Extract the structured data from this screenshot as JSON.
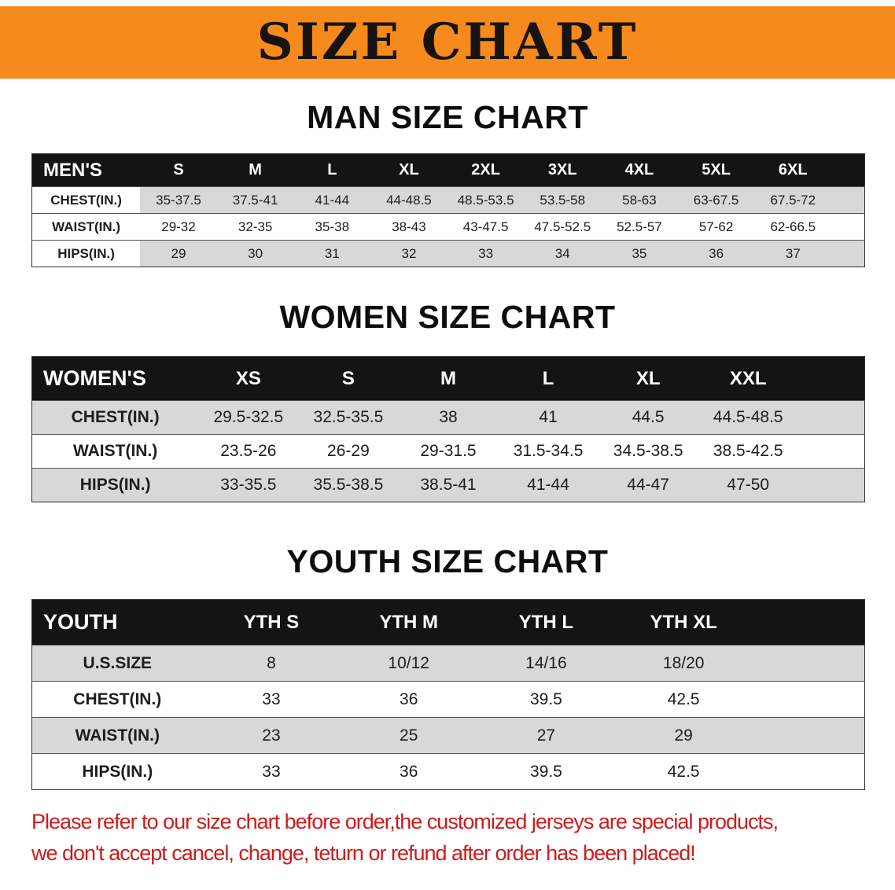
{
  "banner": {
    "title": "SIZE CHART"
  },
  "men": {
    "heading": "MAN SIZE CHART",
    "table": {
      "header": [
        "MEN'S",
        "S",
        "M",
        "L",
        "XL",
        "2XL",
        "3XL",
        "4XL",
        "5XL",
        "6XL"
      ],
      "rows": [
        [
          "CHEST(IN.)",
          "35-37.5",
          "37.5-41",
          "41-44",
          "44-48.5",
          "48.5-53.5",
          "53.5-58",
          "58-63",
          "63-67.5",
          "67.5-72"
        ],
        [
          "WAIST(IN.)",
          "29-32",
          "32-35",
          "35-38",
          "38-43",
          "43-47.5",
          "47.5-52.5",
          "52.5-57",
          "57-62",
          "62-66.5"
        ],
        [
          "HIPS(IN.)",
          "29",
          "30",
          "31",
          "32",
          "33",
          "34",
          "35",
          "36",
          "37"
        ]
      ]
    }
  },
  "women": {
    "heading": "WOMEN SIZE CHART",
    "table": {
      "header": [
        "WOMEN'S",
        "XS",
        "S",
        "M",
        "L",
        "XL",
        "XXL"
      ],
      "rows": [
        [
          "CHEST(IN.)",
          "29.5-32.5",
          "32.5-35.5",
          "38",
          "41",
          "44.5",
          "44.5-48.5"
        ],
        [
          "WAIST(IN.)",
          "23.5-26",
          "26-29",
          "29-31.5",
          "31.5-34.5",
          "34.5-38.5",
          "38.5-42.5"
        ],
        [
          "HIPS(IN.)",
          "33-35.5",
          "35.5-38.5",
          "38.5-41",
          "41-44",
          "44-47",
          "47-50"
        ]
      ]
    }
  },
  "youth": {
    "heading": "YOUTH SIZE CHART",
    "table": {
      "header": [
        "YOUTH",
        "YTH S",
        "YTH M",
        "YTH L",
        "YTH XL"
      ],
      "rows": [
        [
          "U.S.SIZE",
          "8",
          "10/12",
          "14/16",
          "18/20"
        ],
        [
          "CHEST(IN.)",
          "33",
          "36",
          "39.5",
          "42.5"
        ],
        [
          "WAIST(IN.)",
          "23",
          "25",
          "27",
          "29"
        ],
        [
          "HIPS(IN.)",
          "33",
          "36",
          "39.5",
          "42.5"
        ]
      ]
    }
  },
  "disclaimer": {
    "line1": "Please refer to our size chart before order,the customized jerseys are special products,",
    "line2": "we don't accept cancel, change, teturn or refund after order has been placed!"
  },
  "colors": {
    "banner_bg": "#f68a1c",
    "table_header_bg": "#141414",
    "table_header_text": "#ffffff",
    "row_shaded": "#d8d8d8",
    "row_plain": "#ffffff",
    "disclaimer_text": "#cf1b1b"
  }
}
